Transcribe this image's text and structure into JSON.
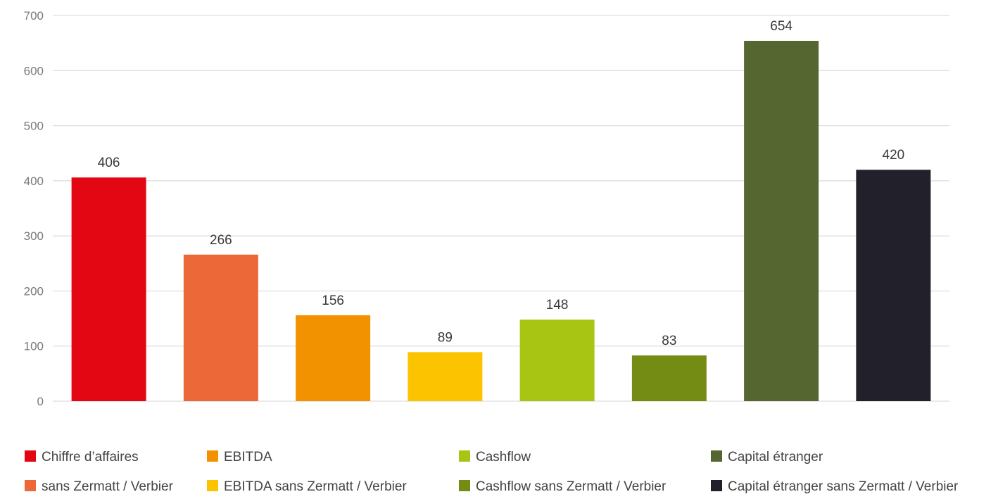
{
  "chart_data": {
    "type": "bar",
    "title": "",
    "xlabel": "",
    "ylabel": "",
    "ylim": [
      0,
      700
    ],
    "yticks": [
      0,
      100,
      200,
      300,
      400,
      500,
      600,
      700
    ],
    "grid": true,
    "legend_position": "bottom",
    "categories": [
      "Chiffre d’affaires",
      "sans Zermatt / Verbier",
      "EBITDA",
      "EBITDA sans Zermatt / Verbier",
      "Cashflow",
      "Cashflow sans Zermatt / Verbier",
      "Capital étranger",
      "Capital étranger sans Zermatt / Verbier"
    ],
    "values": [
      406,
      266,
      156,
      89,
      148,
      83,
      654,
      420
    ],
    "colors": [
      "#e30613",
      "#ec6839",
      "#f39200",
      "#fcc300",
      "#a8c514",
      "#758c14",
      "#556631",
      "#22212b"
    ],
    "data_labels": [
      "406",
      "266",
      "156",
      "89",
      "148",
      "83",
      "654",
      "420"
    ],
    "legend": [
      {
        "label": "Chiffre d’affaires",
        "color": "#e30613"
      },
      {
        "label": "EBITDA",
        "color": "#f39200"
      },
      {
        "label": "Cashflow",
        "color": "#a8c514"
      },
      {
        "label": "Capital étranger",
        "color": "#556631"
      },
      {
        "label": "sans Zermatt / Verbier",
        "color": "#ec6839"
      },
      {
        "label": "EBITDA sans Zermatt / Verbier",
        "color": "#fcc300"
      },
      {
        "label": "Cashflow sans Zermatt / Verbier",
        "color": "#758c14"
      },
      {
        "label": "Capital étranger sans Zermatt / Verbier",
        "color": "#22212b"
      }
    ]
  }
}
